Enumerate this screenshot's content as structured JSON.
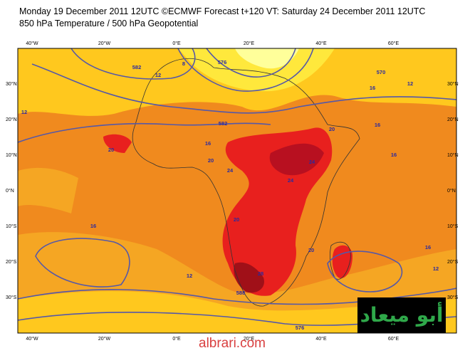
{
  "header": {
    "line1": "Monday 19 December 2011 12UTC ©ECMWF Forecast t+120 VT: Saturday 24 December 2011 12UTC",
    "line2": "850 hPa Temperature / 500 hPa Geopotential"
  },
  "map": {
    "lon_labels": [
      "40°W",
      "20°W",
      "0°E",
      "20°E",
      "40°E",
      "60°E"
    ],
    "lat_labels": [
      "30°N",
      "20°N",
      "10°N",
      "0°N",
      "10°S",
      "20°S",
      "30°S"
    ],
    "contour_labels": [
      "582",
      "12",
      "8",
      "576",
      "570",
      "16",
      "12",
      "582",
      "16",
      "20",
      "20",
      "24",
      "24",
      "24",
      "20",
      "16",
      "12",
      "588",
      "16",
      "576",
      "12",
      "16",
      "20",
      "28",
      "20",
      "16",
      "12"
    ]
  },
  "watermark": {
    "logo": "أبو ميعاد",
    "site": "albrari.com"
  }
}
